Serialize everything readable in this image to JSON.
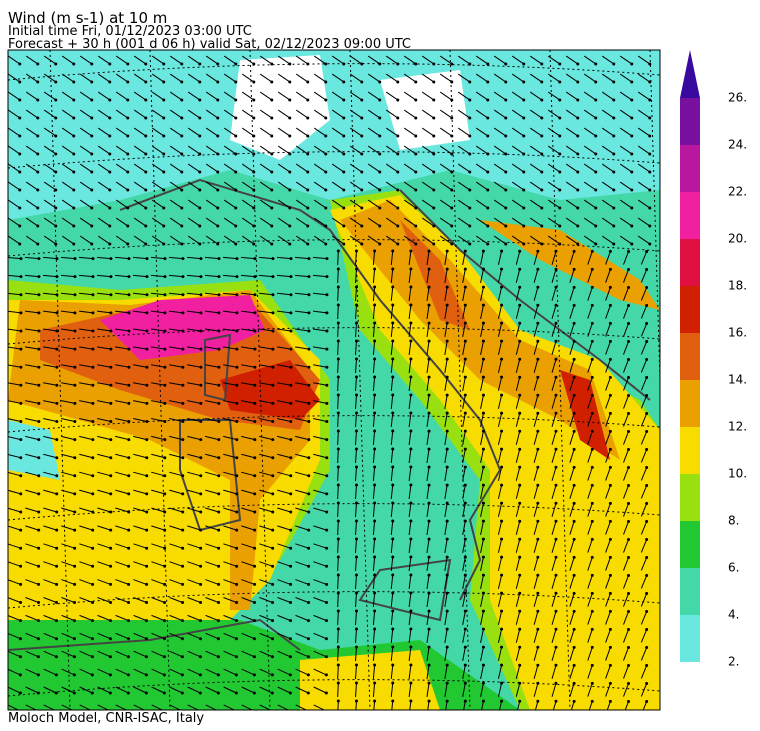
{
  "header": {
    "title": "Wind (m s-1) at 10 m",
    "initial_time": "Initial time  Fri, 01/12/2023  03:00 UTC",
    "forecast": "Forecast  +  30 h  (001 d 06 h)  valid Sat, 02/12/2023 09:00 UTC"
  },
  "footer": "Moloch Model, CNR-ISAC, Italy",
  "colorbar": {
    "bounds": [
      2,
      4,
      6,
      8,
      10,
      12,
      14,
      16,
      18,
      20,
      22,
      24,
      26
    ],
    "colors": [
      "#6ae8e0",
      "#44d8a8",
      "#22c832",
      "#98e010",
      "#f8dc00",
      "#eaa000",
      "#e06010",
      "#d02000",
      "#e01040",
      "#f020a0",
      "#b818a0",
      "#7a10a0"
    ],
    "extend_color": "#3a0aa0",
    "ticks": [
      {
        "value": 2,
        "label": "2."
      },
      {
        "value": 4,
        "label": "4."
      },
      {
        "value": 6,
        "label": "6."
      },
      {
        "value": 8,
        "label": "8."
      },
      {
        "value": 10,
        "label": "10."
      },
      {
        "value": 12,
        "label": "12."
      },
      {
        "value": 14,
        "label": "14."
      },
      {
        "value": 16,
        "label": "16."
      },
      {
        "value": 18,
        "label": "18."
      },
      {
        "value": 20,
        "label": "20."
      },
      {
        "value": 22,
        "label": "22."
      },
      {
        "value": 24,
        "label": "24."
      },
      {
        "value": 26,
        "label": "26."
      }
    ]
  }
}
